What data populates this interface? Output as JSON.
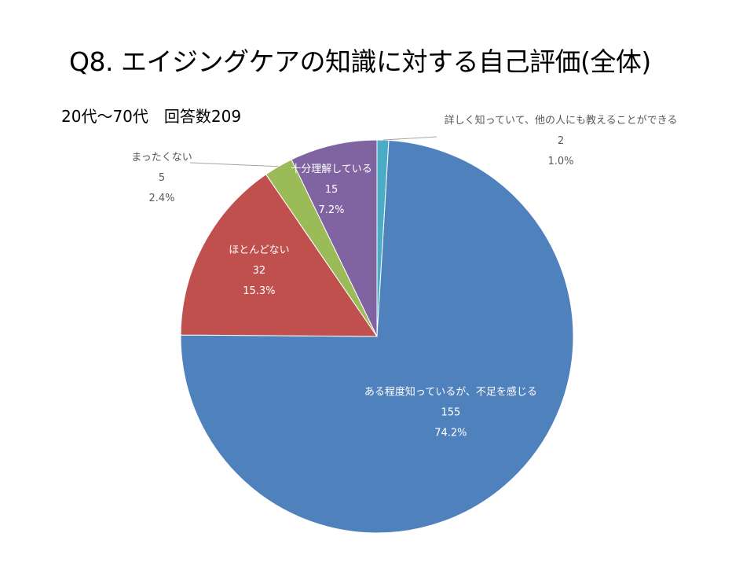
{
  "slide": {
    "title": "Q8. エイジングケアの知識に対する自己評価(全体)",
    "subtitle": "20代～70代　回答数209"
  },
  "chart_data": {
    "type": "pie",
    "title": "Q8. エイジングケアの知識に対する自己評価(全体)",
    "subtitle": "20代～70代　回答数209",
    "total": 209,
    "start_angle_deg": 0,
    "direction": "clockwise",
    "slices": [
      {
        "label": "詳しく知っていて、他の人にも教えることができる",
        "value": 2,
        "percent": "1.0%",
        "color": "#4BACC6",
        "label_color": "#595959"
      },
      {
        "label": "ある程度知っているが、不足を感じる",
        "value": 155,
        "percent": "74.2%",
        "color": "#4F81BD",
        "label_color": "#ffffff"
      },
      {
        "label": "ほとんどない",
        "value": 32,
        "percent": "15.3%",
        "color": "#C0504D",
        "label_color": "#ffffff"
      },
      {
        "label": "まったくない",
        "value": 5,
        "percent": "2.4%",
        "color": "#9BBB59",
        "label_color": "#595959"
      },
      {
        "label": "十分理解している",
        "value": 15,
        "percent": "7.2%",
        "color": "#8064A2",
        "label_color": "#ffffff"
      }
    ]
  }
}
